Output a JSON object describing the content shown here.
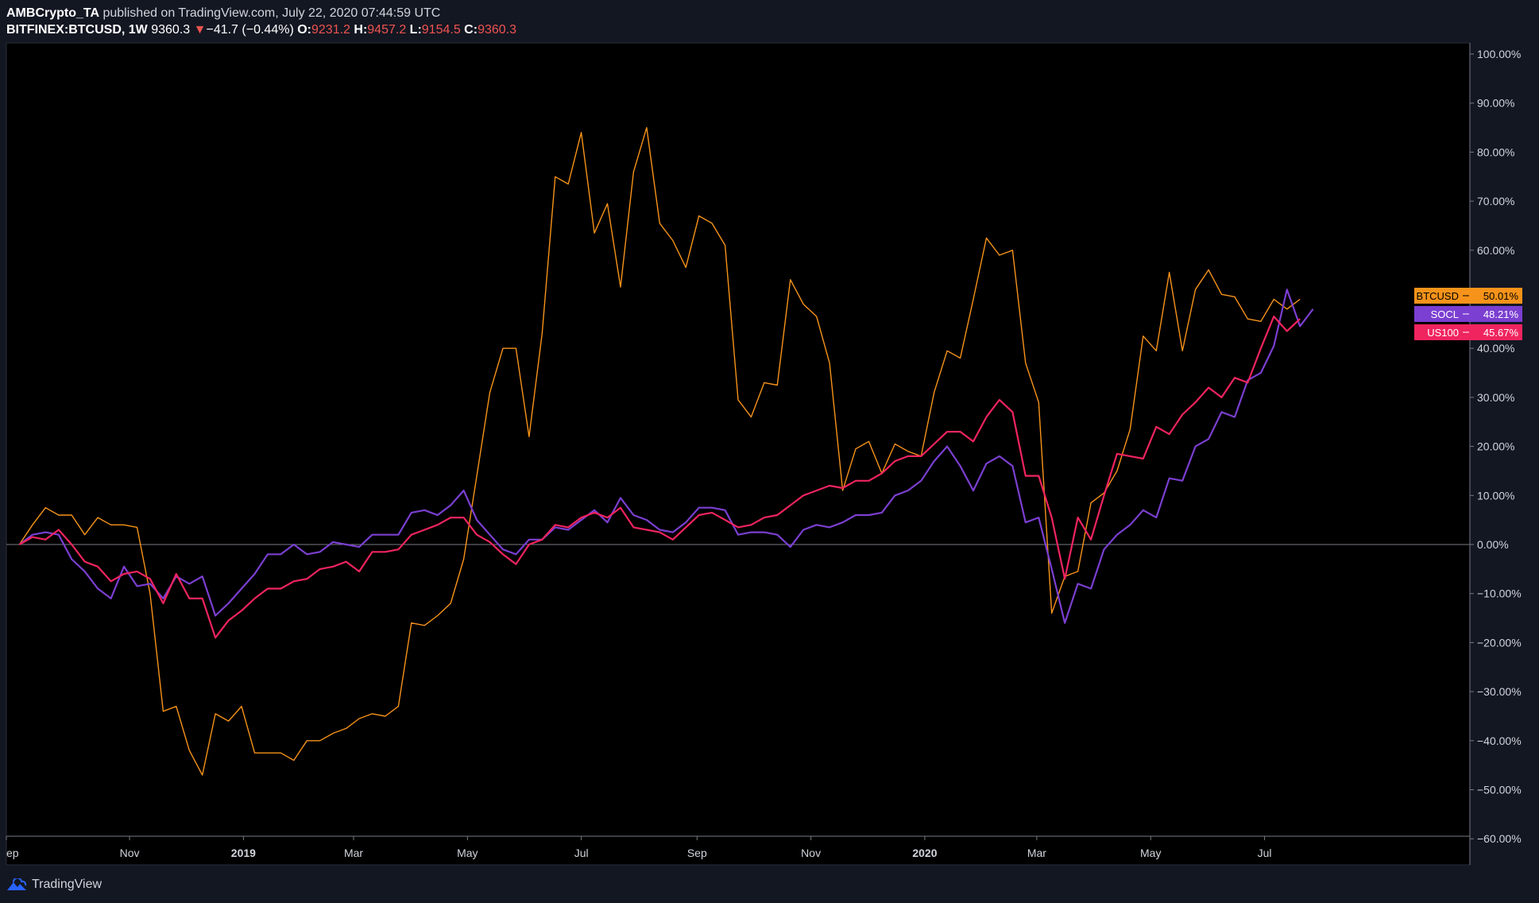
{
  "header": {
    "author": "AMBCrypto_TA",
    "published_text": "published on TradingView.com, July 22, 2020 07:44:59 UTC",
    "symbol": "BITFINEX:BTCUSD, 1W",
    "price": "9360.3",
    "change_arrow": "▼",
    "change": "−41.7 (−0.44%)",
    "open_label": "O:",
    "open": "9231.2",
    "high_label": "H:",
    "high": "9457.2",
    "low_label": "L:",
    "low": "9154.5",
    "close_label": "C:",
    "close": "9360.3"
  },
  "footer": {
    "brand": "TradingView",
    "logo_icon": "tradingview-logo-icon"
  },
  "colors": {
    "background": "#000000",
    "page": "#131722",
    "btc": "#f7931a",
    "socl": "#7b3fd1",
    "us100": "#f0245f",
    "grid_zero": "#787b86",
    "axis_line": "#787b86"
  },
  "chart_data": {
    "type": "line",
    "title": "",
    "ylabel": "",
    "xlabel": "",
    "y_unit": "%",
    "ylim": [
      -60,
      100
    ],
    "y_ticks": [
      "100.00%",
      "90.00%",
      "80.00%",
      "70.00%",
      "60.00%",
      "50.00%",
      "40.00%",
      "30.00%",
      "20.00%",
      "10.00%",
      "0.00%",
      "−10.00%",
      "−20.00%",
      "−30.00%",
      "−40.00%",
      "−50.00%",
      "−60.00%"
    ],
    "x_start": "2018-09-03",
    "x_end": "2020-07-20",
    "x_domain": [
      "2018-08-27",
      "2020-10-19"
    ],
    "x_ticks": [
      {
        "label": "ep",
        "date": "2018-08-27",
        "bold": false
      },
      {
        "label": "Nov",
        "date": "2018-11-01",
        "bold": false
      },
      {
        "label": "2019",
        "date": "2019-01-01",
        "bold": true
      },
      {
        "label": "Mar",
        "date": "2019-03-01",
        "bold": false
      },
      {
        "label": "May",
        "date": "2019-05-01",
        "bold": false
      },
      {
        "label": "Jul",
        "date": "2019-07-01",
        "bold": false
      },
      {
        "label": "Sep",
        "date": "2019-09-01",
        "bold": false
      },
      {
        "label": "Nov",
        "date": "2019-11-01",
        "bold": false
      },
      {
        "label": "2020",
        "date": "2020-01-01",
        "bold": true
      },
      {
        "label": "Mar",
        "date": "2020-03-01",
        "bold": false
      },
      {
        "label": "May",
        "date": "2020-05-01",
        "bold": false
      },
      {
        "label": "Jul",
        "date": "2020-07-01",
        "bold": false
      }
    ],
    "series": [
      {
        "name": "BTCUSD",
        "color": "#f7931a",
        "tag": "BTCUSD",
        "last_label": "50.01%",
        "values": [
          0,
          4,
          7.5,
          6,
          6,
          2,
          5.5,
          4,
          4,
          3.5,
          -10,
          -34,
          -33,
          -42,
          -47,
          -34.5,
          -36,
          -33,
          -42.5,
          -42.5,
          -42.5,
          -44,
          -40,
          -40,
          -38.5,
          -37.5,
          -35.5,
          -34.5,
          -35,
          -33,
          -16,
          -16.5,
          -14.5,
          -12,
          -3,
          14,
          31,
          40,
          40,
          22,
          43,
          75,
          73.5,
          84,
          63.5,
          69.5,
          52.5,
          76,
          85,
          65.5,
          62,
          56.5,
          67,
          65.5,
          61,
          29.5,
          26,
          33,
          32.5,
          54,
          49,
          46.5,
          37,
          11,
          19.5,
          21,
          14.5,
          20.5,
          19,
          18,
          31,
          39.5,
          38,
          50,
          62.5,
          59,
          60,
          37,
          29,
          -14,
          -6.5,
          -5.5,
          8.5,
          10.5,
          15,
          23.5,
          42.5,
          39.5,
          55.5,
          39.5,
          52,
          56,
          51,
          50.5,
          46,
          45.5,
          50,
          48,
          50
        ]
      },
      {
        "name": "SOCL",
        "color": "#7b3fd1",
        "tag": "SOCL",
        "last_label": "48.21%",
        "values": [
          0,
          2,
          2.5,
          2,
          -3,
          -5.5,
          -9,
          -11,
          -4.5,
          -8.5,
          -8,
          -11,
          -6.5,
          -8,
          -6.5,
          -14.5,
          -12,
          -9,
          -6,
          -2,
          -2,
          0,
          -2,
          -1.5,
          0.5,
          0,
          -0.5,
          2,
          2,
          2,
          6.5,
          7,
          6,
          8,
          11,
          5,
          2,
          -1,
          -2,
          1,
          1,
          3.5,
          3,
          5,
          7,
          4.5,
          9.5,
          6,
          5,
          3,
          2.5,
          4.5,
          7.5,
          7.5,
          7,
          2,
          2.5,
          2.5,
          2,
          -0.5,
          3,
          4,
          3.5,
          4.5,
          6,
          6,
          6.5,
          10,
          11,
          13,
          17,
          20,
          16,
          11,
          16.5,
          18,
          16,
          4.5,
          5.5,
          -5,
          -16,
          -8,
          -9,
          -1,
          2,
          4,
          7,
          5.5,
          13.5,
          13,
          20,
          21.5,
          27,
          26,
          33.5,
          35,
          40.5,
          52,
          44.5,
          48
        ]
      },
      {
        "name": "US100",
        "color": "#f0245f",
        "tag": "US100",
        "last_label": "45.67%",
        "values": [
          0,
          1.5,
          1,
          3,
          0,
          -3.5,
          -4.5,
          -7.5,
          -6,
          -5.5,
          -7,
          -12,
          -6,
          -11,
          -11,
          -19,
          -15.5,
          -13.5,
          -11,
          -9,
          -9,
          -7.5,
          -7,
          -5,
          -4.5,
          -3.5,
          -5.5,
          -1.5,
          -1.5,
          -1,
          2,
          3,
          4,
          5.5,
          5.5,
          2,
          0.5,
          -2,
          -4,
          0,
          1,
          4,
          3.5,
          5.5,
          6.5,
          5.5,
          7.5,
          3.5,
          3,
          2.5,
          1,
          3.5,
          6,
          6.5,
          5,
          3.5,
          4,
          5.5,
          6,
          8,
          10,
          11,
          12,
          11.5,
          13,
          13,
          14.5,
          17,
          18,
          18,
          20.5,
          23,
          23,
          21,
          26,
          29.5,
          27,
          14,
          14,
          5.5,
          -7,
          5.5,
          1,
          10,
          18.5,
          18,
          17.5,
          24,
          22.5,
          26.5,
          29,
          32,
          30,
          34,
          33,
          40,
          46.5,
          43.5,
          46
        ]
      }
    ]
  }
}
